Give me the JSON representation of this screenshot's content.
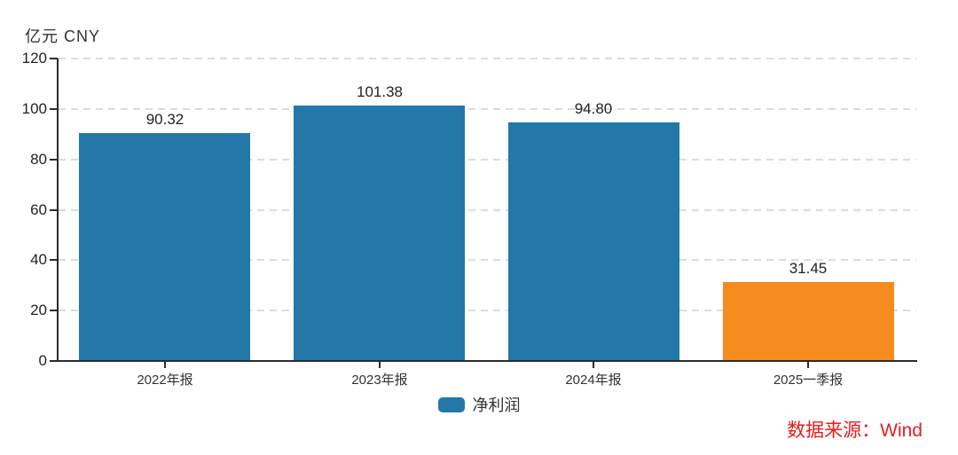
{
  "chart_data": {
    "type": "bar",
    "title": "",
    "unit_label": "亿元 CNY",
    "categories": [
      "2022年报",
      "2023年报",
      "2024年报",
      "2025一季报"
    ],
    "series": [
      {
        "name": "净利润",
        "values": [
          90.32,
          101.38,
          94.8,
          31.45
        ]
      }
    ],
    "value_labels": [
      "90.32",
      "101.38",
      "94.80",
      "31.45"
    ],
    "bar_colors": [
      "#2378a8",
      "#2378a8",
      "#2378a8",
      "#f68c1f"
    ],
    "ylim": [
      0,
      120
    ],
    "yticks": [
      0,
      20,
      40,
      60,
      80,
      100,
      120
    ],
    "grid": "horizontal-dashed",
    "legend": {
      "label": "净利润",
      "color": "#2378a8",
      "position": "bottom-center"
    },
    "source_note": "数据来源：Wind",
    "colors": {
      "bar_blue": "#2378a8",
      "bar_orange": "#f68c1f",
      "axis": "#2b2b2b",
      "grid": "#dcdcdc",
      "text": "#333333",
      "source_red": "#e61d1d"
    }
  }
}
